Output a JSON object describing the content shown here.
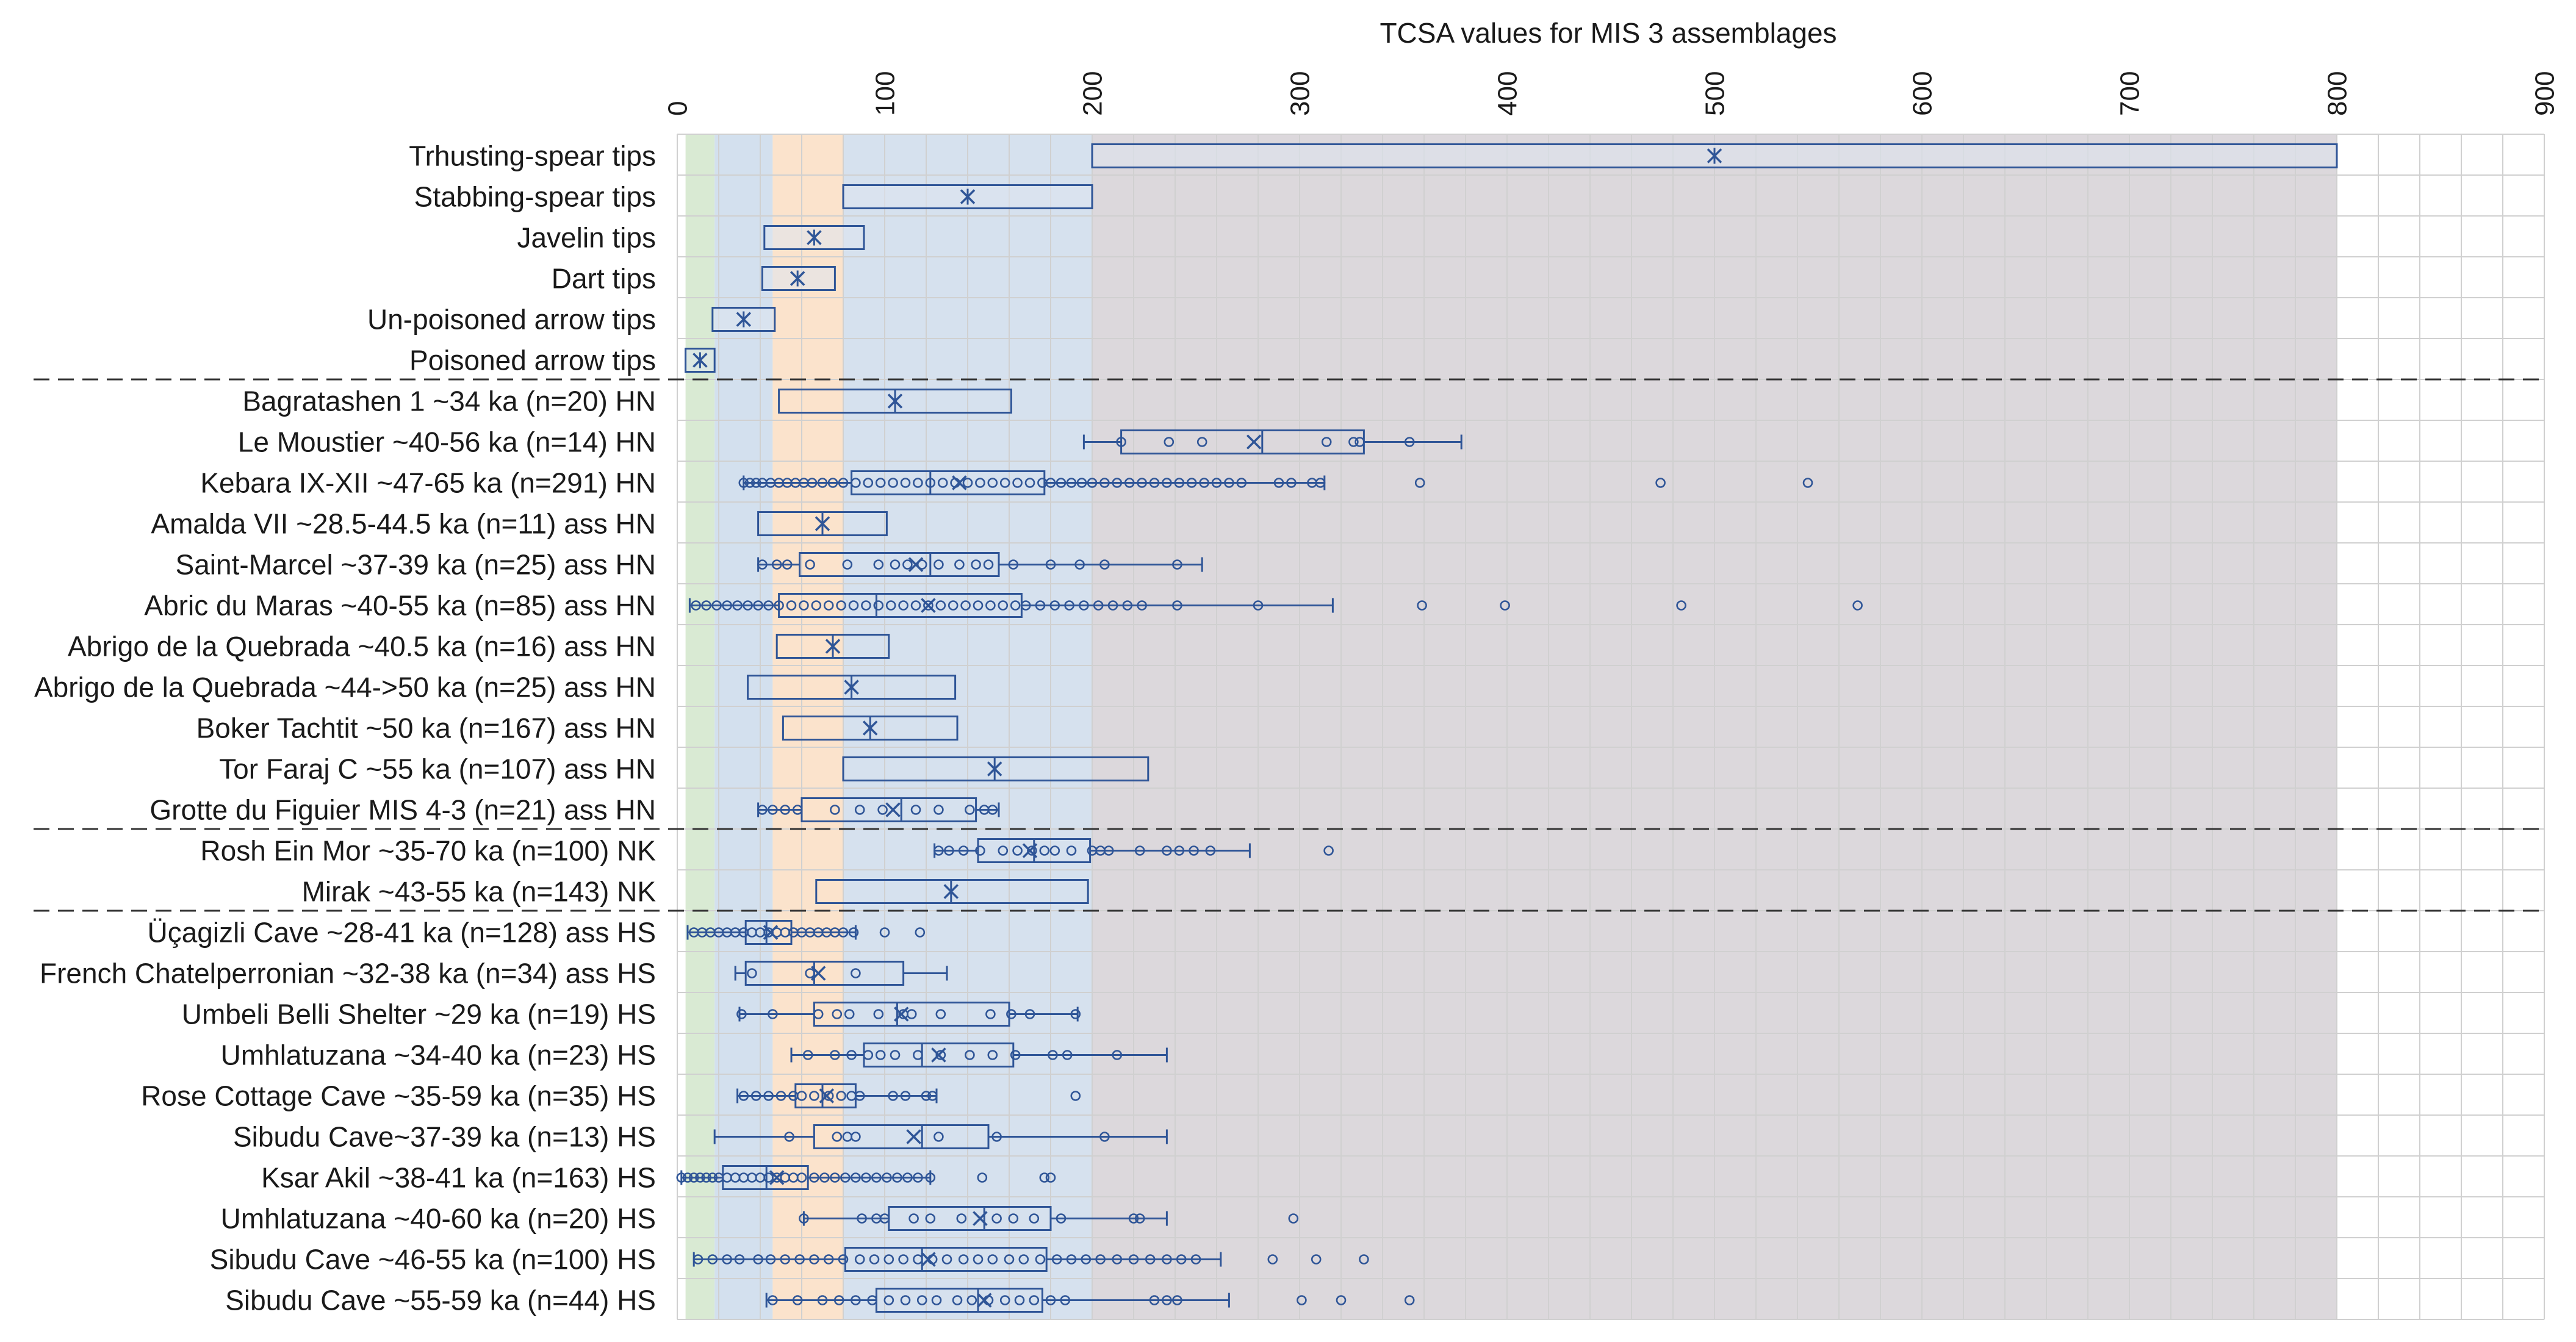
{
  "chart_data": {
    "type": "boxplot",
    "title": "TCSA values for MIS 3 assemblages",
    "xlabel": "",
    "ylabel": "",
    "xlim": [
      0,
      900
    ],
    "xticks": [
      0,
      100,
      200,
      300,
      400,
      500,
      600,
      700,
      800,
      900
    ],
    "xtick_labels": [
      "0",
      "100",
      "200",
      "300",
      "400",
      "500",
      "600",
      "700",
      "800",
      "900"
    ],
    "grid": true,
    "colors": {
      "box": "#2f5597",
      "box_fill_ref": "#dfe6f1",
      "band_green": "#d9ead3",
      "band_blue": "#d3e0ee",
      "band_orange": "#fbe3cc",
      "band_blue2": "#d6e1ee",
      "band_grey": "#dcd8dc",
      "grid": "#d0d0d0",
      "divider": "#333333"
    },
    "background_bands": [
      {
        "name": "poisoned-arrow-band",
        "from": 4,
        "to": 18,
        "color": "#d9ead3"
      },
      {
        "name": "arrow-band",
        "from": 18,
        "to": 46,
        "color": "#d3e0ee"
      },
      {
        "name": "dart-javelin-band",
        "from": 46,
        "to": 80,
        "color": "#fbe3cc"
      },
      {
        "name": "stabbing-band",
        "from": 80,
        "to": 200,
        "color": "#d6e1ee"
      },
      {
        "name": "thrusting-band",
        "from": 200,
        "to": 800,
        "color": "#dcd8dc"
      }
    ],
    "group_dividers_after": [
      5,
      16,
      18
    ],
    "rows": [
      {
        "label": "Trhusting-spear tips",
        "q1": 200,
        "q3": 800,
        "mean": 500,
        "wlo": 200,
        "whi": 800,
        "points": [],
        "reference": true
      },
      {
        "label": "Stabbing-spear tips",
        "q1": 80,
        "q3": 200,
        "mean": 140,
        "wlo": 80,
        "whi": 200,
        "points": [],
        "reference": true
      },
      {
        "label": "Javelin tips",
        "q1": 42,
        "q3": 90,
        "mean": 66,
        "wlo": 42,
        "whi": 90,
        "points": [],
        "reference": true
      },
      {
        "label": "Dart tips",
        "q1": 41,
        "q3": 76,
        "mean": 58,
        "wlo": 41,
        "whi": 76,
        "points": [],
        "reference": true
      },
      {
        "label": "Un-poisoned arrow tips",
        "q1": 17,
        "q3": 47,
        "mean": 32,
        "wlo": 17,
        "whi": 47,
        "points": [],
        "reference": true
      },
      {
        "label": "Poisoned arrow tips",
        "q1": 4,
        "q3": 18,
        "mean": 11,
        "wlo": 4,
        "whi": 18,
        "points": [],
        "reference": true
      },
      {
        "label": "Bagratashen 1 ~34 ka (n=20) HN",
        "q1": 49,
        "q3": 161,
        "median": 105,
        "mean": 105,
        "wlo": 49,
        "whi": 161,
        "points": []
      },
      {
        "label": "Le Moustier ~40-56 ka (n=14) HN",
        "q1": 214,
        "q3": 331,
        "median": 282,
        "mean": 278,
        "wlo": 196,
        "whi": 378,
        "points": [
          214,
          237,
          253,
          313,
          326,
          329,
          353
        ]
      },
      {
        "label": "Kebara IX-XII ~47-65 ka (n=291) HN",
        "q1": 84,
        "q3": 177,
        "median": 122,
        "mean": 136,
        "wlo": 32,
        "whi": 312,
        "points": [
          32,
          35,
          38,
          41,
          45,
          49,
          53,
          57,
          61,
          65,
          70,
          75,
          80,
          86,
          92,
          98,
          104,
          110,
          116,
          122,
          128,
          134,
          140,
          146,
          152,
          158,
          164,
          170,
          176,
          180,
          185,
          190,
          195,
          200,
          206,
          212,
          218,
          224,
          230,
          236,
          242,
          248,
          254,
          260,
          266,
          272,
          290,
          296,
          306,
          310,
          358,
          474,
          545
        ]
      },
      {
        "label": "Amalda VII ~28.5-44.5 ka (n=11) ass HN",
        "q1": 39,
        "q3": 101,
        "median": 70,
        "mean": 70,
        "wlo": 39,
        "whi": 101,
        "points": []
      },
      {
        "label": "Saint-Marcel ~37-39 ka (n=25) ass HN",
        "q1": 59,
        "q3": 155,
        "median": 122,
        "mean": 115,
        "wlo": 39,
        "whi": 253,
        "points": [
          41,
          48,
          53,
          64,
          82,
          97,
          105,
          111,
          118,
          126,
          136,
          144,
          150,
          162,
          180,
          194,
          206,
          241
        ]
      },
      {
        "label": "Abric du Maras ~40-55 ka (n=85) ass HN",
        "q1": 49,
        "q3": 166,
        "median": 96,
        "mean": 121,
        "wlo": 6,
        "whi": 316,
        "points": [
          9,
          14,
          19,
          24,
          29,
          34,
          39,
          44,
          49,
          55,
          61,
          67,
          73,
          79,
          85,
          91,
          97,
          103,
          109,
          115,
          121,
          127,
          133,
          139,
          145,
          151,
          157,
          163,
          168,
          175,
          182,
          189,
          196,
          203,
          210,
          217,
          224,
          241,
          280,
          359,
          399,
          484,
          569
        ]
      },
      {
        "label": "Abrigo de la Quebrada ~40.5 ka (n=16) ass HN",
        "q1": 48,
        "q3": 102,
        "median": 75,
        "mean": 75,
        "wlo": 48,
        "whi": 102,
        "points": []
      },
      {
        "label": "Abrigo de la Quebrada ~44->50 ka (n=25) ass HN",
        "q1": 34,
        "q3": 134,
        "median": 84,
        "mean": 84,
        "wlo": 34,
        "whi": 134,
        "points": []
      },
      {
        "label": "Boker Tachtit ~50 ka (n=167) ass HN",
        "q1": 51,
        "q3": 135,
        "median": 93,
        "mean": 93,
        "wlo": 51,
        "whi": 135,
        "points": []
      },
      {
        "label": "Tor Faraj C ~55 ka (n=107) ass HN",
        "q1": 80,
        "q3": 227,
        "median": 153,
        "mean": 153,
        "wlo": 80,
        "whi": 227,
        "points": []
      },
      {
        "label": "Grotte du Figuier MIS 4-3 (n=21) ass HN",
        "q1": 60,
        "q3": 144,
        "median": 108,
        "mean": 104,
        "wlo": 39,
        "whi": 155,
        "points": [
          41,
          46,
          52,
          58,
          76,
          88,
          99,
          115,
          126,
          141,
          148,
          152
        ]
      },
      {
        "label": "Rosh Ein Mor ~35-70 ka (n=100) NK",
        "q1": 145,
        "q3": 199,
        "median": 172,
        "mean": 170,
        "wlo": 124,
        "whi": 276,
        "points": [
          126,
          131,
          138,
          146,
          157,
          164,
          171,
          177,
          182,
          190,
          200,
          204,
          208,
          223,
          236,
          242,
          249,
          257,
          314
        ]
      },
      {
        "label": "Mirak ~43-55 ka (n=143) NK",
        "q1": 67,
        "q3": 198,
        "median": 132,
        "mean": 132,
        "wlo": 67,
        "whi": 198,
        "points": []
      },
      {
        "label": "Üçagizli Cave ~28-41 ka (n=128) ass HS",
        "q1": 33,
        "q3": 55,
        "median": 43,
        "mean": 45,
        "wlo": 5,
        "whi": 86,
        "points": [
          8,
          12,
          16,
          20,
          24,
          28,
          32,
          36,
          40,
          44,
          48,
          52,
          56,
          60,
          64,
          68,
          72,
          76,
          80,
          85,
          100,
          117
        ]
      },
      {
        "label": "French Chatelperronian ~32-38 ka (n=34) ass HS",
        "q1": 33,
        "q3": 109,
        "median": 66,
        "mean": 68,
        "wlo": 28,
        "whi": 130,
        "points": [
          36,
          64,
          86
        ]
      },
      {
        "label": "Umbeli Belli Shelter ~29 ka (n=19) HS",
        "q1": 66,
        "q3": 160,
        "median": 106,
        "mean": 108,
        "wlo": 30,
        "whi": 193,
        "points": [
          31,
          46,
          68,
          77,
          83,
          97,
          109,
          113,
          127,
          151,
          161,
          170,
          192
        ]
      },
      {
        "label": "Umhlatuzana ~34-40 ka (n=23) HS",
        "q1": 90,
        "q3": 162,
        "median": 118,
        "mean": 126,
        "wlo": 55,
        "whi": 236,
        "points": [
          63,
          76,
          84,
          92,
          98,
          105,
          116,
          127,
          141,
          152,
          163,
          181,
          188,
          212
        ]
      },
      {
        "label": "Rose Cottage Cave ~35-59 ka (n=35) HS",
        "q1": 57,
        "q3": 86,
        "median": 70,
        "mean": 72,
        "wlo": 29,
        "whi": 125,
        "points": [
          32,
          38,
          44,
          50,
          56,
          60,
          66,
          73,
          79,
          84,
          88,
          104,
          110,
          120,
          123,
          192
        ]
      },
      {
        "label": "Sibudu Cave~37-39 ka (n=13) HS",
        "q1": 66,
        "q3": 150,
        "median": 118,
        "mean": 114,
        "wlo": 18,
        "whi": 236,
        "points": [
          54,
          77,
          82,
          86,
          126,
          154,
          206
        ]
      },
      {
        "label": "Ksar Akil ~38-41 ka (n=163) HS",
        "q1": 22,
        "q3": 63,
        "median": 43,
        "mean": 48,
        "wlo": 2,
        "whi": 122,
        "points": [
          2,
          5,
          8,
          11,
          14,
          17,
          20,
          24,
          28,
          32,
          36,
          40,
          44,
          48,
          52,
          56,
          60,
          66,
          71,
          76,
          81,
          86,
          91,
          96,
          101,
          106,
          111,
          116,
          122,
          147,
          177,
          180
        ]
      },
      {
        "label": "Umhlatuzana ~40-60 ka (n=20) HS",
        "q1": 102,
        "q3": 180,
        "median": 148,
        "mean": 146,
        "wlo": 61,
        "whi": 236,
        "points": [
          61,
          89,
          96,
          100,
          114,
          122,
          137,
          154,
          162,
          172,
          185,
          220,
          223,
          297
        ]
      },
      {
        "label": "Sibudu Cave ~46-55 ka (n=100) HS",
        "q1": 81,
        "q3": 178,
        "median": 118,
        "mean": 121,
        "wlo": 8,
        "whi": 262,
        "points": [
          10,
          17,
          24,
          30,
          39,
          45,
          52,
          59,
          66,
          73,
          80,
          88,
          95,
          102,
          109,
          116,
          123,
          130,
          138,
          145,
          152,
          160,
          167,
          175,
          183,
          190,
          197,
          204,
          212,
          220,
          228,
          236,
          243,
          250,
          287,
          308,
          331
        ]
      },
      {
        "label": "Sibudu Cave ~55-59 ka (n=44) HS",
        "q1": 96,
        "q3": 176,
        "median": 145,
        "mean": 148,
        "wlo": 43,
        "whi": 266,
        "points": [
          46,
          58,
          70,
          78,
          86,
          94,
          102,
          110,
          118,
          125,
          135,
          142,
          150,
          158,
          165,
          172,
          180,
          187,
          230,
          236,
          241,
          301,
          320,
          353
        ]
      }
    ]
  }
}
